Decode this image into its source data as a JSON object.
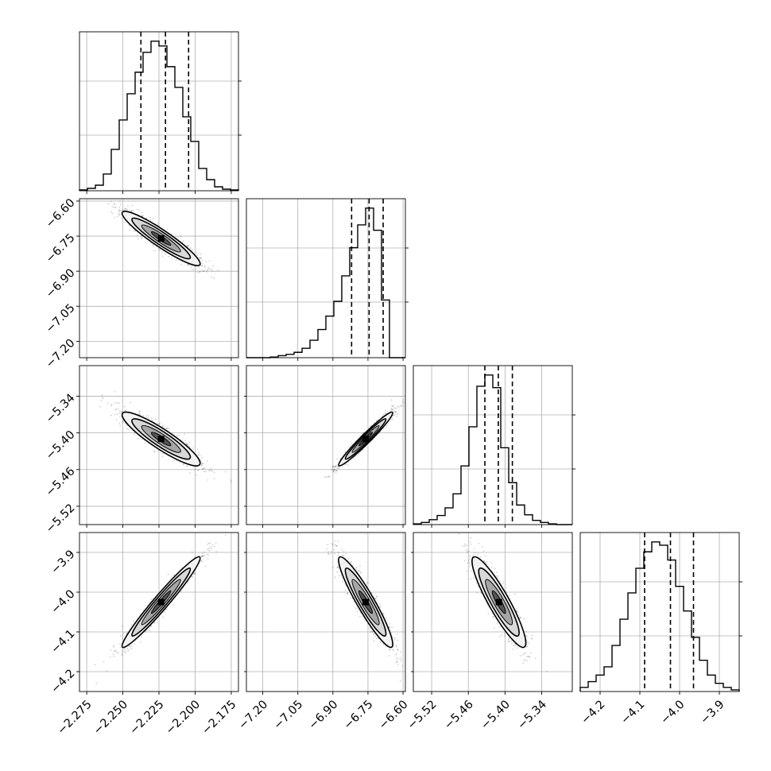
{
  "colors": {
    "axis": "#000000",
    "grid": "#b0b0b0",
    "contour": "#000000",
    "points": "#000000",
    "background": "#ffffff"
  },
  "chart_data": {
    "type": "corner",
    "grid": true,
    "parameters": [
      {
        "range": [
          -2.28,
          -2.17
        ],
        "ticks": [
          -2.275,
          -2.25,
          -2.225,
          -2.2,
          -2.175
        ],
        "tick_labels": [
          "−2.275",
          "−2.250",
          "−2.225",
          "−2.200",
          "−2.175"
        ],
        "mean": -2.2235,
        "sd": 0.0135,
        "quantiles": [
          -2.2375,
          -2.2205,
          -2.2045
        ]
      },
      {
        "range": [
          -7.27,
          -6.59
        ],
        "ticks": [
          -7.2,
          -7.05,
          -6.9,
          -6.75,
          -6.6
        ],
        "tick_labels": [
          "−7.20",
          "−7.05",
          "−6.90",
          "−6.75",
          "−6.60"
        ],
        "mean": -6.76,
        "sd": 0.058,
        "quantiles": [
          -6.82,
          -6.745,
          -6.685
        ]
      },
      {
        "range": [
          -5.55,
          -5.29
        ],
        "ticks": [
          -5.52,
          -5.46,
          -5.4,
          -5.34
        ],
        "tick_labels": [
          "−5.52",
          "−5.46",
          "−5.40",
          "−5.34"
        ],
        "mean": -5.41,
        "sd": 0.022,
        "quantiles": [
          -5.433,
          -5.411,
          -5.388
        ]
      },
      {
        "range": [
          -4.25,
          -3.85
        ],
        "ticks": [
          -4.2,
          -4.1,
          -4.0,
          -3.9
        ],
        "tick_labels": [
          "−4.2",
          "−4.1",
          "−4.0",
          "−3.9"
        ],
        "mean": -4.025,
        "sd": 0.057,
        "quantiles": [
          -4.088,
          -4.023,
          -3.965
        ]
      }
    ],
    "correlations": [
      [
        0,
        1,
        -0.93
      ],
      [
        0,
        2,
        -0.9
      ],
      [
        0,
        3,
        0.97
      ],
      [
        1,
        2,
        0.97
      ],
      [
        1,
        3,
        -0.93
      ],
      [
        2,
        3,
        -0.9
      ]
    ],
    "histograms": [
      {
        "param": 0,
        "bins": 20,
        "counts": [
          1,
          3,
          7,
          21,
          52,
          89,
          122,
          149,
          174,
          188,
          182,
          156,
          130,
          93,
          62,
          28,
          14,
          5,
          2,
          1
        ]
      },
      {
        "param": 1,
        "bins": 20,
        "counts": [
          0,
          0,
          0,
          1,
          3,
          5,
          8,
          14,
          26,
          42,
          62,
          84,
          122,
          164,
          198,
          223,
          190,
          86,
          0,
          0
        ]
      },
      {
        "param": 2,
        "bins": 20,
        "counts": [
          1,
          3,
          7,
          13,
          24,
          44,
          84,
          140,
          198,
          214,
          196,
          110,
          60,
          28,
          14,
          6,
          3,
          1,
          0,
          0
        ]
      },
      {
        "param": 3,
        "bins": 20,
        "counts": [
          5,
          12,
          20,
          30,
          56,
          88,
          120,
          150,
          170,
          182,
          178,
          160,
          128,
          98,
          66,
          38,
          20,
          10,
          5,
          2
        ]
      }
    ]
  }
}
